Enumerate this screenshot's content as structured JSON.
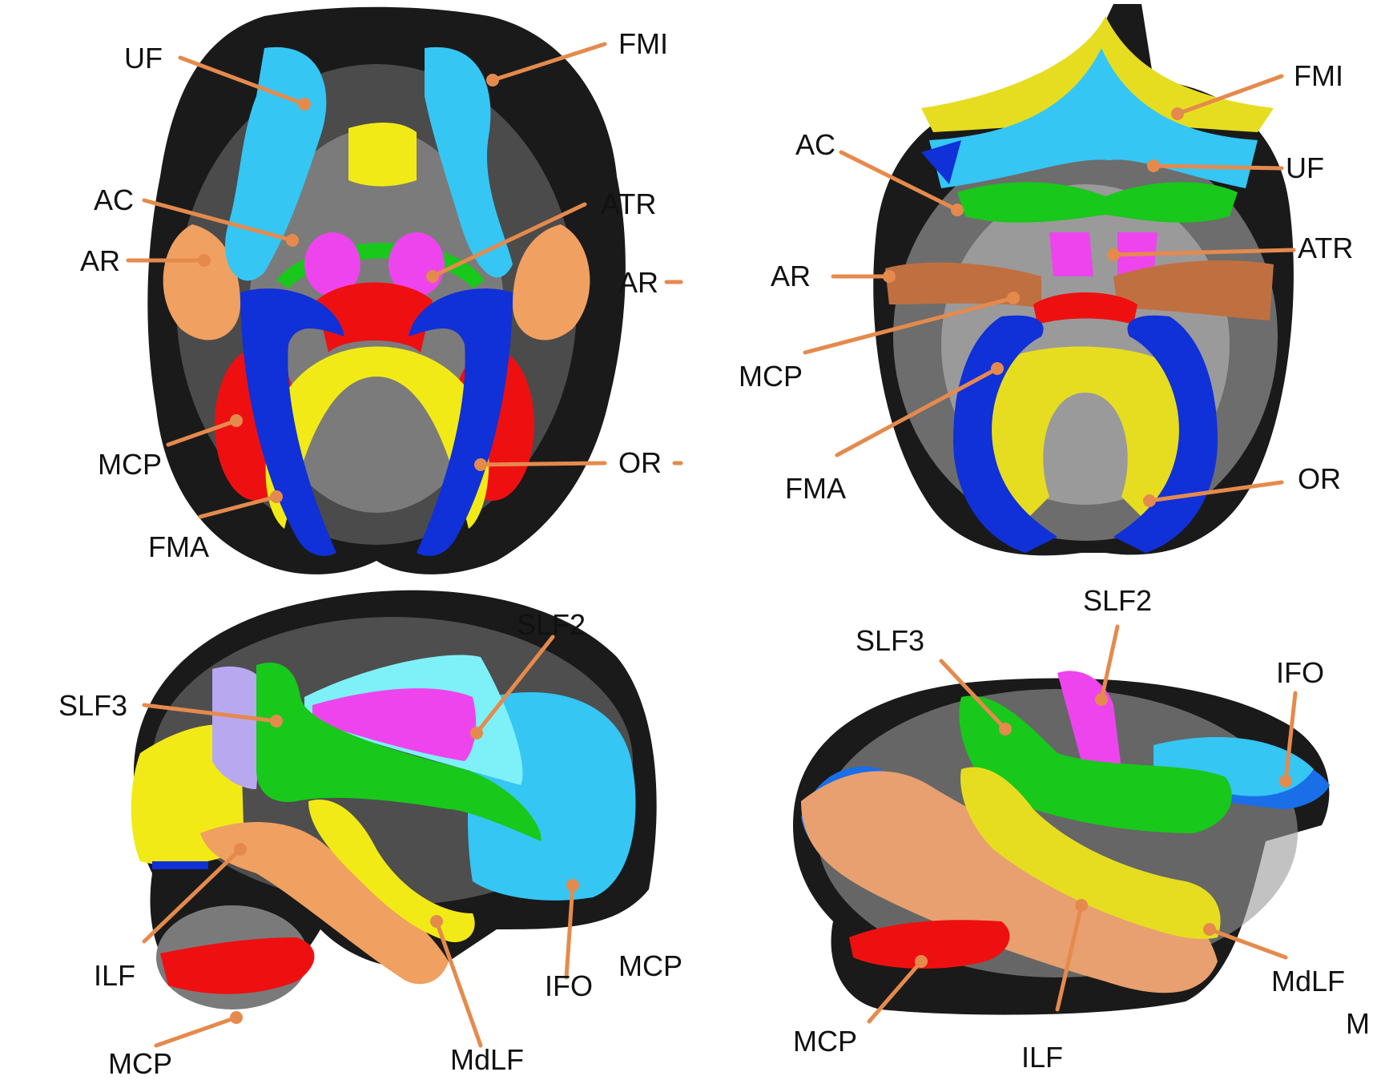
{
  "colors": {
    "leader": "#e58a4d",
    "yellow": "#f2ea16",
    "light_blue": "#35c6f4",
    "blue": "#1030d8",
    "green": "#18c81a",
    "magenta": "#ee44ee",
    "red": "#ee1010",
    "tan": "#f0a060",
    "brain_dark": "#1a1a1a",
    "brain_gray": "#8a8a8a"
  },
  "panels": {
    "top_left": {
      "labels": {
        "uf": "UF",
        "fmi": "FMI",
        "ac": "AC",
        "atr": "ATR",
        "ar": "AR",
        "ar_right": "AR",
        "mcp": "MCP",
        "or": "OR",
        "fma": "FMA"
      }
    },
    "top_right": {
      "labels": {
        "fmi": "FMI",
        "ac": "AC",
        "uf": "UF",
        "atr": "ATR",
        "ar": "AR",
        "mcp": "MCP",
        "fma": "FMA",
        "or": "OR"
      }
    },
    "bottom_left": {
      "labels": {
        "slf2": "SLF2",
        "slf3": "SLF3",
        "ilf": "ILF",
        "ifo": "IFO",
        "mcp_right": "MCP",
        "mcp": "MCP",
        "mdlf": "MdLF"
      }
    },
    "bottom_right": {
      "labels": {
        "slf2": "SLF2",
        "slf3": "SLF3",
        "ifo": "IFO",
        "mdlf": "MdLF",
        "m": "M",
        "mcp": "MCP",
        "ilf": "ILF"
      }
    }
  }
}
